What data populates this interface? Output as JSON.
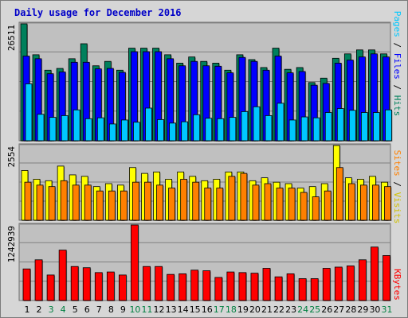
{
  "title": "Daily usage for December 2016",
  "colors": {
    "hits": "#00805c",
    "files": "#0000ff",
    "pages": "#00c8ff",
    "visits": "#ffff00",
    "sites": "#ff8000",
    "kbytes": "#ff0000",
    "weekday_label": "#000000",
    "weekend_label": "#008040",
    "plot_bg": "#c0c0c0"
  },
  "right_labels": {
    "top": {
      "pages": "Pages",
      "files": "Files",
      "hits": "Hits",
      "sep": " / "
    },
    "middle": {
      "sites": "Sites",
      "visits": "Visits",
      "sep": " / "
    },
    "bottom": {
      "kbytes": "KBytes"
    }
  },
  "chart_data": [
    {
      "type": "bar",
      "panel": "hits-files-pages",
      "y_max_label": "26511",
      "ylim": [
        0,
        26511
      ],
      "categories": [
        "1",
        "2",
        "3",
        "4",
        "5",
        "6",
        "7",
        "8",
        "9",
        "10",
        "11",
        "12",
        "13",
        "14",
        "15",
        "16",
        "17",
        "18",
        "19",
        "20",
        "21",
        "22",
        "23",
        "24",
        "25",
        "26",
        "27",
        "28",
        "29",
        "30",
        "31"
      ],
      "weekend_days": [
        "3",
        "4",
        "10",
        "11",
        "17",
        "18",
        "24",
        "25",
        "31"
      ],
      "series": [
        {
          "name": "Hits",
          "values": [
            26511,
            19500,
            16000,
            16400,
            18600,
            22000,
            17000,
            18000,
            16000,
            21000,
            21000,
            21000,
            19500,
            17600,
            19000,
            18000,
            17600,
            16000,
            19500,
            18400,
            16600,
            21000,
            16200,
            16600,
            13200,
            14200,
            18700,
            19700,
            20600,
            20600,
            19700
          ]
        },
        {
          "name": "Files",
          "values": [
            19200,
            18600,
            15200,
            15600,
            17800,
            17800,
            16300,
            16400,
            15500,
            20200,
            20200,
            20200,
            18600,
            17000,
            18000,
            17000,
            16900,
            15400,
            18900,
            18000,
            16000,
            19200,
            15400,
            15700,
            12600,
            13000,
            17600,
            18300,
            19000,
            19700,
            19000
          ]
        },
        {
          "name": "Pages",
          "values": [
            12900,
            6000,
            5300,
            5700,
            7000,
            5000,
            5200,
            3800,
            4700,
            4200,
            7400,
            4800,
            4000,
            4300,
            5900,
            5100,
            5000,
            5300,
            6600,
            7700,
            5700,
            8500,
            4700,
            5400,
            5200,
            6400,
            7300,
            6900,
            6400,
            6400,
            7000
          ]
        }
      ]
    },
    {
      "type": "bar",
      "panel": "visits-sites",
      "y_max_label": "2554",
      "ylim": [
        0,
        2554
      ],
      "categories": [
        "1",
        "2",
        "3",
        "4",
        "5",
        "6",
        "7",
        "8",
        "9",
        "10",
        "11",
        "12",
        "13",
        "14",
        "15",
        "16",
        "17",
        "18",
        "19",
        "20",
        "21",
        "22",
        "23",
        "24",
        "25",
        "26",
        "27",
        "28",
        "29",
        "30",
        "31"
      ],
      "series": [
        {
          "name": "Visits",
          "values": [
            1700,
            1400,
            1350,
            1850,
            1550,
            1500,
            1150,
            1250,
            1200,
            1800,
            1600,
            1650,
            1400,
            1650,
            1500,
            1350,
            1400,
            1650,
            1650,
            1350,
            1450,
            1300,
            1250,
            1100,
            1150,
            1250,
            2554,
            1450,
            1400,
            1500,
            1300
          ]
        },
        {
          "name": "Sites",
          "values": [
            1300,
            1200,
            1150,
            1350,
            1200,
            1200,
            1000,
            1000,
            1000,
            1300,
            1300,
            1200,
            1100,
            1400,
            1300,
            1100,
            1100,
            1500,
            1600,
            1200,
            1250,
            1100,
            1100,
            950,
            800,
            1000,
            1800,
            1250,
            1200,
            1200,
            1150
          ]
        }
      ]
    },
    {
      "type": "bar",
      "panel": "kbytes",
      "y_max_label": "1242939",
      "ylim": [
        0,
        1242939
      ],
      "categories": [
        "1",
        "2",
        "3",
        "4",
        "5",
        "6",
        "7",
        "8",
        "9",
        "10",
        "11",
        "12",
        "13",
        "14",
        "15",
        "16",
        "17",
        "18",
        "19",
        "20",
        "21",
        "22",
        "23",
        "24",
        "25",
        "26",
        "27",
        "28",
        "29",
        "30",
        "31"
      ],
      "series": [
        {
          "name": "KBytes",
          "values": [
            520000,
            670000,
            420000,
            830000,
            560000,
            540000,
            460000,
            470000,
            420000,
            1242939,
            560000,
            560000,
            430000,
            440000,
            500000,
            490000,
            380000,
            470000,
            460000,
            450000,
            530000,
            390000,
            440000,
            360000,
            360000,
            530000,
            550000,
            570000,
            670000,
            880000,
            740000
          ]
        }
      ]
    }
  ]
}
